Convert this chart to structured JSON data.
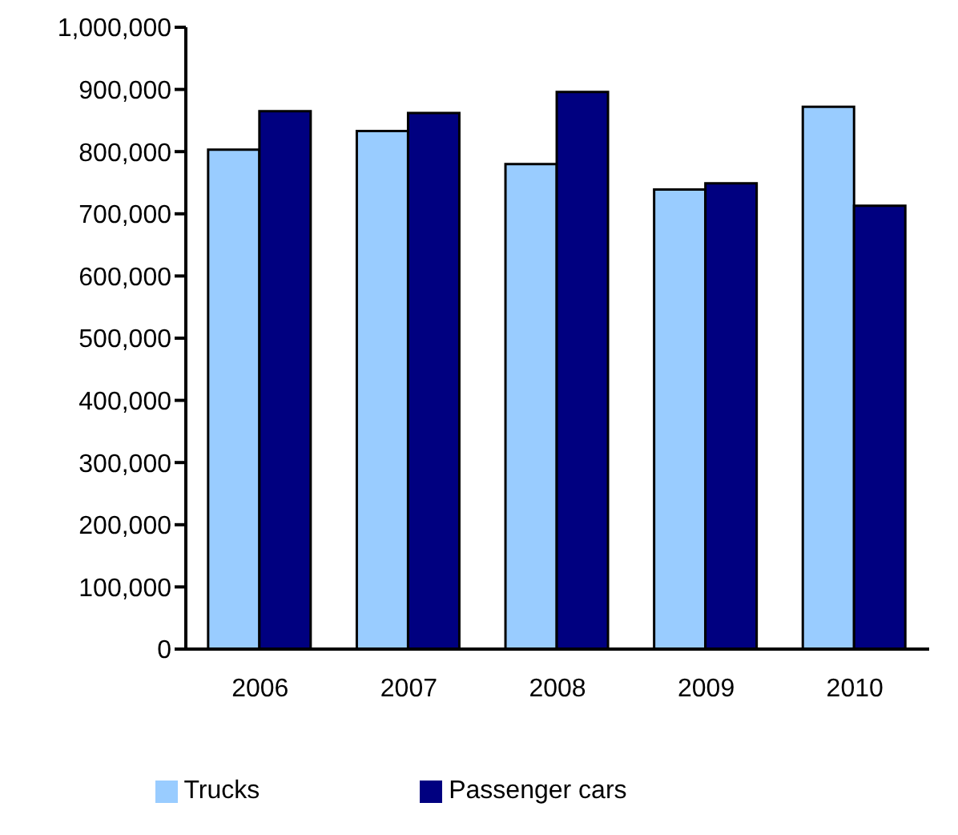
{
  "chart_data": {
    "type": "bar",
    "categories": [
      "2006",
      "2007",
      "2008",
      "2009",
      "2010"
    ],
    "series": [
      {
        "name": "Trucks",
        "color": "#99ccff",
        "values": [
          803000,
          833000,
          780000,
          739000,
          872000
        ]
      },
      {
        "name": "Passenger cars",
        "color": "#000080",
        "values": [
          865000,
          862000,
          896000,
          749000,
          713000
        ]
      }
    ],
    "ylim": [
      0,
      1000000
    ],
    "yticks": [
      0,
      {
        "value": 100000,
        "label": "100,000"
      },
      {
        "value": 200000,
        "label": "200,000"
      },
      {
        "value": 300000,
        "label": "300,000"
      },
      {
        "value": 400000,
        "label": "400,000"
      },
      {
        "value": 500000,
        "label": "500,000"
      },
      {
        "value": 600000,
        "label": "600,000"
      },
      {
        "value": 700000,
        "label": "700,000"
      },
      {
        "value": 800000,
        "label": "800,000"
      },
      {
        "value": 900000,
        "label": "900,000"
      },
      {
        "value": 1000000,
        "label": "1,000,000"
      }
    ],
    "grid": false,
    "legend": "bottom"
  }
}
